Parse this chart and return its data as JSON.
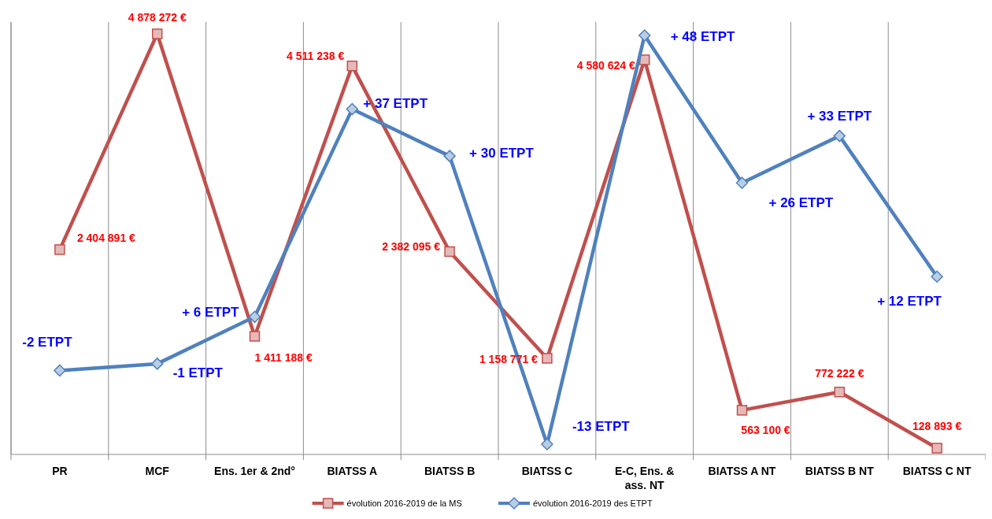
{
  "chart_data": {
    "type": "line",
    "categories": [
      "PR",
      "MCF",
      "Ens. 1er & 2nd°",
      "BIATSS A",
      "BIATSS B",
      "BIATSS C",
      "E-C, Ens. & ass. NT",
      "BIATSS A NT",
      "BIATSS B NT",
      "BIATSS C NT"
    ],
    "series": [
      {
        "name": "évolution 2016-2019 de la MS",
        "color": "#c0504d",
        "marker": "square",
        "values": [
          2404891,
          4878272,
          1411188,
          4511238,
          2382095,
          1158771,
          4580624,
          563100,
          772222,
          128893
        ],
        "value_labels": [
          "2 404 891 €",
          "4 878 272 €",
          "1 411 188 €",
          "4 511 238 €",
          "2 382 095 €",
          "1 158 771 €",
          "4 580 624 €",
          "563 100 €",
          "772 222 €",
          "128 893 €"
        ]
      },
      {
        "name": "évolution 2016-2019 des ETPT",
        "color": "#4f81bd",
        "marker": "diamond",
        "axis": "y2",
        "values": [
          -2,
          -1,
          6,
          37,
          30,
          -13,
          48,
          26,
          33,
          12
        ],
        "value_labels": [
          "-2 ETPT",
          "-1 ETPT",
          "+ 6 ETPT",
          "+ 37 ETPT",
          "+ 30 ETPT",
          "-13 ETPT",
          "+ 48 ETPT",
          "+ 26 ETPT",
          "+ 33 ETPT",
          "+ 12 ETPT"
        ]
      }
    ],
    "grid": "x",
    "legend": "bottom"
  }
}
